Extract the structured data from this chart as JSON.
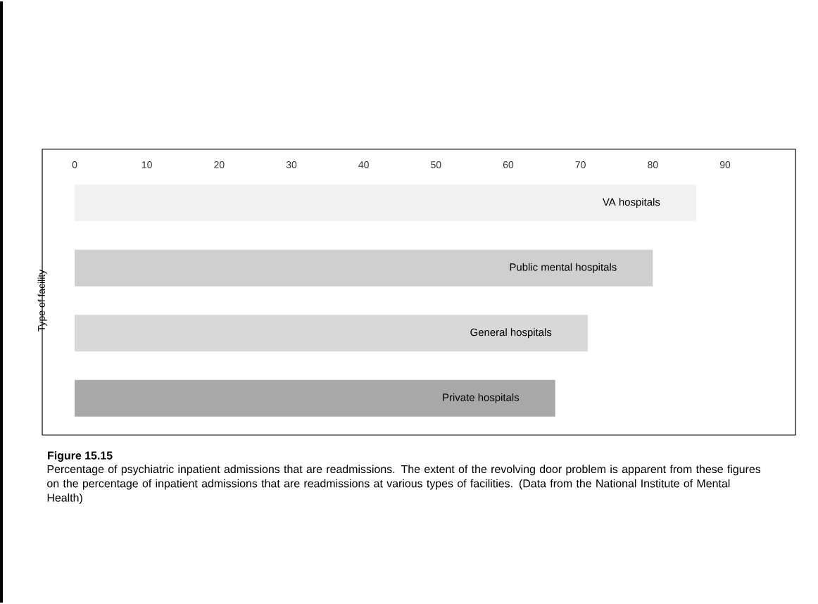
{
  "chart_data": {
    "type": "bar",
    "orientation": "horizontal",
    "title": "Figure 15.15",
    "ylabel": "Type of facility",
    "categories": [
      "VA hospitals",
      "Public mental hospitals",
      "General hospitals",
      "Private hospitals"
    ],
    "values": [
      86,
      80,
      71,
      66.5
    ],
    "colors": [
      "#f1f1f1",
      "#cfcfcf",
      "#d8d8d8",
      "#a8a8a8"
    ],
    "xlim": [
      0,
      90
    ],
    "xticks": [
      0,
      10,
      20,
      30,
      40,
      50,
      60,
      70,
      80,
      90
    ],
    "grid": false,
    "annotations": [
      "Percentage of psychiatric inpatient admissions that are readmissions. The extent of the revolving door problem is apparent from these figures on the percentage of inpatient admissions that are readmissions at various types of facilities. (Data from the National Institute of Mental Health)"
    ]
  }
}
